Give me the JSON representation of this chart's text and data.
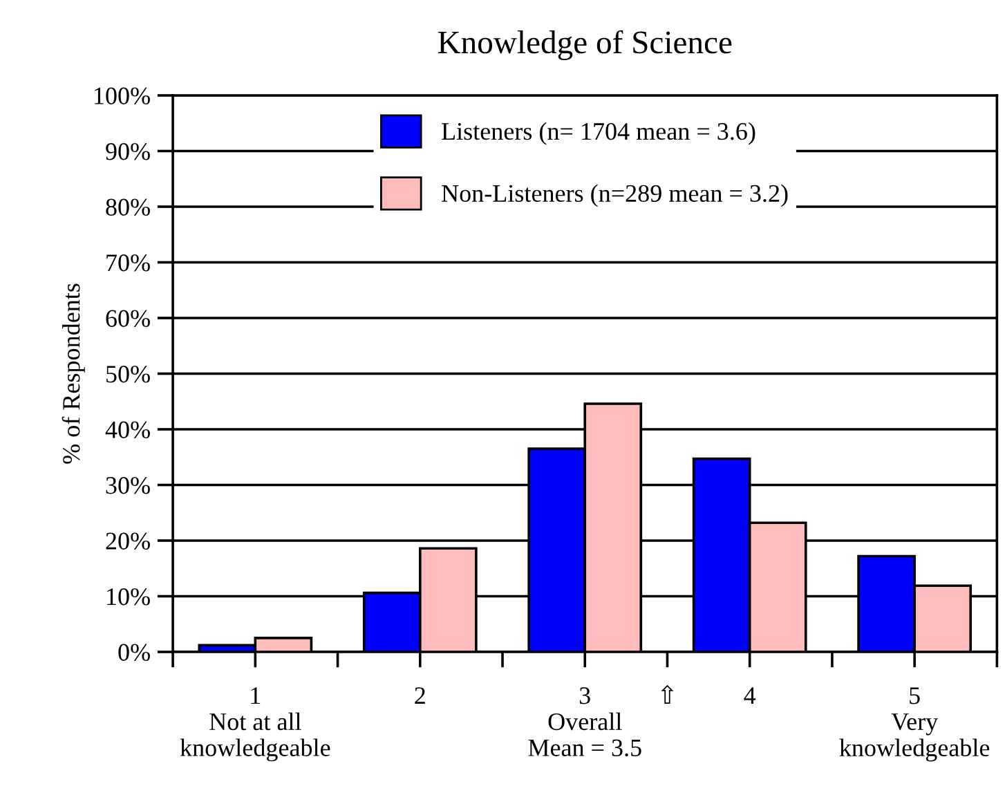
{
  "chart_data": {
    "type": "bar",
    "title": "Knowledge of Science",
    "ylabel": "% of Respondents",
    "x": [
      1,
      2,
      3,
      4,
      5
    ],
    "series": [
      {
        "name": "Listeners (n= 1704 mean = 3.6)",
        "color": "#0000ff",
        "values": [
          1.2,
          10.6,
          36.5,
          34.7,
          17.2
        ]
      },
      {
        "name": "Non-Listeners (n=289 mean = 3.2)",
        "color": "#ffbcbc",
        "values": [
          2.5,
          18.6,
          44.6,
          23.2,
          11.9
        ]
      }
    ],
    "xlim": [
      0.5,
      5.5
    ],
    "xticks": [
      {
        "value": 0.5,
        "label": null
      },
      {
        "value": 1,
        "label": "1\nNot at all\nknowledgeable"
      },
      {
        "value": 1.5,
        "label": null
      },
      {
        "value": 2,
        "label": "2"
      },
      {
        "value": 2.5,
        "label": null
      },
      {
        "value": 3,
        "label": "3\nOverall\nMean = 3.5"
      },
      {
        "value": 3.5,
        "label": "⇧"
      },
      {
        "value": 4,
        "label": "4"
      },
      {
        "value": 4.5,
        "label": null
      },
      {
        "value": 5,
        "label": "5\nVery\nknowledgeable"
      },
      {
        "value": 5.5,
        "label": null
      }
    ],
    "ylim": [
      0,
      100
    ],
    "yticks": [
      {
        "value": 0,
        "label": "0%"
      },
      {
        "value": 10,
        "label": "10%"
      },
      {
        "value": 20,
        "label": "20%"
      },
      {
        "value": 30,
        "label": "30%"
      },
      {
        "value": 40,
        "label": "40%"
      },
      {
        "value": 50,
        "label": "50%"
      },
      {
        "value": 60,
        "label": "60%"
      },
      {
        "value": 70,
        "label": "70%"
      },
      {
        "value": 80,
        "label": "80%"
      },
      {
        "value": 90,
        "label": "90%"
      },
      {
        "value": 100,
        "label": "100%"
      }
    ],
    "grid": "y",
    "legend": "top"
  }
}
